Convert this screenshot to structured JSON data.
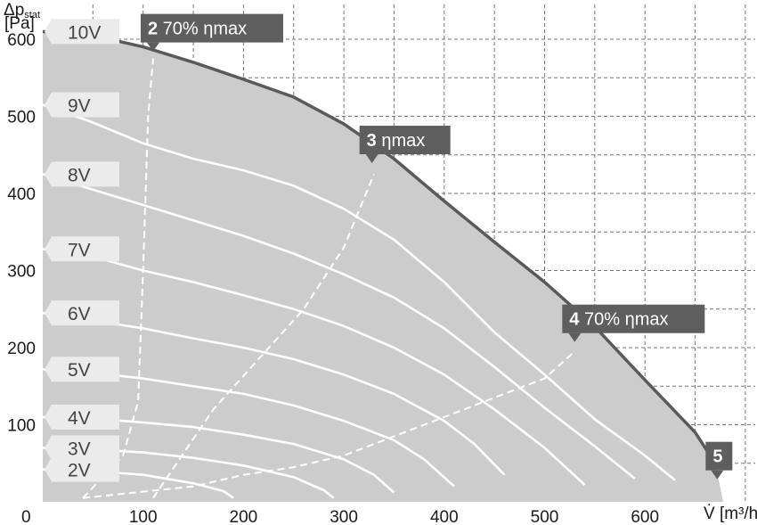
{
  "chart_data": {
    "type": "line",
    "xlabel": "V̇ [m³/h]",
    "ylabel": "Δp",
    "ylabel_sub": "stat",
    "ylabel_unit": "[Pa]",
    "xlim": [
      0,
      700
    ],
    "ylim": [
      0,
      620
    ],
    "x_ticks": [
      0,
      100,
      200,
      300,
      400,
      500,
      600
    ],
    "y_ticks": [
      100,
      200,
      300,
      400,
      500,
      600
    ],
    "grid": true,
    "fan_curves": [
      {
        "name": "10V",
        "points": [
          [
            0,
            610
          ],
          [
            50,
            605
          ],
          [
            100,
            590
          ],
          [
            150,
            570
          ],
          [
            200,
            548
          ],
          [
            250,
            525
          ],
          [
            300,
            490
          ],
          [
            350,
            445
          ],
          [
            400,
            390
          ],
          [
            450,
            337
          ],
          [
            500,
            285
          ],
          [
            550,
            227
          ],
          [
            600,
            158
          ],
          [
            650,
            90
          ],
          [
            670,
            50
          ]
        ]
      },
      {
        "name": "9V",
        "points": [
          [
            0,
            515
          ],
          [
            50,
            492
          ],
          [
            100,
            465
          ],
          [
            150,
            445
          ],
          [
            200,
            430
          ],
          [
            250,
            410
          ],
          [
            300,
            380
          ],
          [
            350,
            340
          ],
          [
            400,
            285
          ],
          [
            450,
            220
          ],
          [
            500,
            165
          ],
          [
            550,
            107
          ],
          [
            600,
            60
          ],
          [
            630,
            28
          ]
        ]
      },
      {
        "name": "8V",
        "points": [
          [
            0,
            425
          ],
          [
            50,
            405
          ],
          [
            100,
            385
          ],
          [
            150,
            365
          ],
          [
            200,
            345
          ],
          [
            250,
            322
          ],
          [
            300,
            295
          ],
          [
            350,
            265
          ],
          [
            400,
            225
          ],
          [
            450,
            175
          ],
          [
            500,
            122
          ],
          [
            550,
            72
          ],
          [
            590,
            30
          ]
        ]
      },
      {
        "name": "7V",
        "points": [
          [
            0,
            328
          ],
          [
            50,
            318
          ],
          [
            100,
            300
          ],
          [
            150,
            285
          ],
          [
            200,
            268
          ],
          [
            250,
            250
          ],
          [
            300,
            228
          ],
          [
            350,
            200
          ],
          [
            400,
            165
          ],
          [
            450,
            120
          ],
          [
            500,
            70
          ],
          [
            540,
            22
          ]
        ]
      },
      {
        "name": "6V",
        "points": [
          [
            0,
            245
          ],
          [
            50,
            235
          ],
          [
            100,
            225
          ],
          [
            150,
            212
          ],
          [
            200,
            200
          ],
          [
            250,
            185
          ],
          [
            300,
            165
          ],
          [
            350,
            140
          ],
          [
            400,
            105
          ],
          [
            430,
            75
          ],
          [
            460,
            35
          ]
        ]
      },
      {
        "name": "5V",
        "points": [
          [
            0,
            172
          ],
          [
            50,
            167
          ],
          [
            100,
            160
          ],
          [
            150,
            150
          ],
          [
            200,
            140
          ],
          [
            250,
            125
          ],
          [
            300,
            105
          ],
          [
            350,
            80
          ],
          [
            380,
            55
          ],
          [
            410,
            20
          ]
        ]
      },
      {
        "name": "4V",
        "points": [
          [
            0,
            110
          ],
          [
            50,
            108
          ],
          [
            100,
            103
          ],
          [
            150,
            97
          ],
          [
            200,
            87
          ],
          [
            250,
            75
          ],
          [
            300,
            55
          ],
          [
            330,
            35
          ],
          [
            350,
            12
          ]
        ]
      },
      {
        "name": "3V",
        "points": [
          [
            0,
            70
          ],
          [
            50,
            68
          ],
          [
            100,
            64
          ],
          [
            150,
            57
          ],
          [
            200,
            47
          ],
          [
            250,
            32
          ],
          [
            280,
            15
          ],
          [
            290,
            5
          ]
        ]
      },
      {
        "name": "2V",
        "points": [
          [
            0,
            42
          ],
          [
            50,
            40
          ],
          [
            100,
            35
          ],
          [
            150,
            24
          ],
          [
            180,
            14
          ],
          [
            190,
            5
          ]
        ]
      }
    ],
    "efficiency_lines": [
      {
        "name": "2 70% ηmax",
        "points": [
          [
            40,
            5
          ],
          [
            80,
            60
          ],
          [
            95,
            130
          ],
          [
            100,
            300
          ],
          [
            105,
            500
          ],
          [
            110,
            575
          ]
        ]
      },
      {
        "name": "3 ηmax",
        "points": [
          [
            110,
            5
          ],
          [
            170,
            120
          ],
          [
            260,
            250
          ],
          [
            300,
            330
          ],
          [
            330,
            425
          ]
        ]
      },
      {
        "name": "4 70% ηmax",
        "points": [
          [
            40,
            5
          ],
          [
            150,
            20
          ],
          [
            200,
            35
          ],
          [
            250,
            45
          ],
          [
            300,
            60
          ],
          [
            350,
            85
          ],
          [
            400,
            110
          ],
          [
            450,
            135
          ],
          [
            500,
            160
          ],
          [
            530,
            195
          ]
        ]
      }
    ],
    "point_labels": [
      {
        "num": "2",
        "text": "70% ηmax",
        "x": 110,
        "y": 575
      },
      {
        "num": "3",
        "text": "ηmax",
        "x": 328,
        "y": 430
      },
      {
        "num": "4",
        "text": "70% ηmax",
        "x": 530,
        "y": 198
      },
      {
        "num": "5",
        "text": "",
        "x": 672,
        "y": 20
      }
    ],
    "colors": {
      "area": "#cccccc",
      "fan_curve": "#ffffff",
      "max_curve": "#5a5a5a",
      "label_box": "#5e5e5e",
      "voltage_tag": "#ebebeb"
    }
  }
}
